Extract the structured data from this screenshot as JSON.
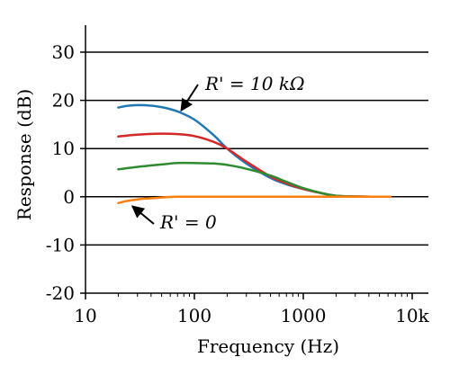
{
  "chart_data": {
    "type": "line",
    "title": "",
    "xlabel": "Frequency (Hz)",
    "ylabel": "Response (dB)",
    "xscale": "log",
    "xlim": [
      10,
      15000
    ],
    "ylim": [
      -20,
      35
    ],
    "x_ticks": [
      10,
      100,
      1000,
      10000
    ],
    "x_tick_labels": [
      "10",
      "100",
      "1000",
      "10k"
    ],
    "y_ticks": [
      -20,
      -10,
      0,
      10,
      20,
      30
    ],
    "y_tick_labels": [
      "-20",
      "-10",
      "0",
      "10",
      "20",
      "30"
    ],
    "grid": "horizontal",
    "series": [
      {
        "color": "#1f77b4",
        "points": [
          [
            20,
            18.5
          ],
          [
            25,
            18.9
          ],
          [
            35,
            19.0
          ],
          [
            50,
            18.6
          ],
          [
            70,
            17.7
          ],
          [
            100,
            16.0
          ],
          [
            150,
            12.8
          ],
          [
            200,
            10.0
          ],
          [
            300,
            6.9
          ],
          [
            500,
            3.9
          ],
          [
            700,
            2.6
          ],
          [
            1000,
            1.6
          ],
          [
            1500,
            0.7
          ],
          [
            2000,
            0.2
          ],
          [
            3000,
            0.05
          ],
          [
            6300,
            0.0
          ]
        ]
      },
      {
        "color": "#d62728",
        "points": [
          [
            20,
            12.5
          ],
          [
            30,
            12.9
          ],
          [
            50,
            13.1
          ],
          [
            70,
            13.0
          ],
          [
            100,
            12.6
          ],
          [
            150,
            11.4
          ],
          [
            200,
            10.0
          ],
          [
            300,
            7.3
          ],
          [
            500,
            4.2
          ],
          [
            700,
            2.8
          ],
          [
            1000,
            1.6
          ],
          [
            1500,
            0.7
          ],
          [
            2000,
            0.2
          ],
          [
            3000,
            0.05
          ],
          [
            6300,
            0.0
          ]
        ]
      },
      {
        "color": "#2e8b30",
        "points": [
          [
            20,
            5.7
          ],
          [
            30,
            6.2
          ],
          [
            50,
            6.7
          ],
          [
            70,
            7.0
          ],
          [
            100,
            7.0
          ],
          [
            150,
            6.9
          ],
          [
            200,
            6.6
          ],
          [
            300,
            5.8
          ],
          [
            500,
            4.4
          ],
          [
            700,
            3.1
          ],
          [
            1000,
            1.8
          ],
          [
            1500,
            0.7
          ],
          [
            2000,
            0.2
          ],
          [
            3000,
            0.05
          ],
          [
            6300,
            0.0
          ]
        ]
      },
      {
        "color": "#ff7f0e",
        "points": [
          [
            20,
            -1.3
          ],
          [
            25,
            -0.8
          ],
          [
            35,
            -0.4
          ],
          [
            50,
            -0.15
          ],
          [
            70,
            0.0
          ],
          [
            100,
            0.0
          ],
          [
            200,
            0.0
          ],
          [
            500,
            0.0
          ],
          [
            1000,
            0.0
          ],
          [
            2000,
            0.0
          ],
          [
            6300,
            0.0
          ]
        ]
      }
    ],
    "annotations": [
      {
        "text": "R' = 10 kΩ",
        "arrow_to": [
          70,
          17.5
        ]
      },
      {
        "text": "R' = 0",
        "arrow_to": [
          24,
          -1.2
        ]
      }
    ]
  }
}
